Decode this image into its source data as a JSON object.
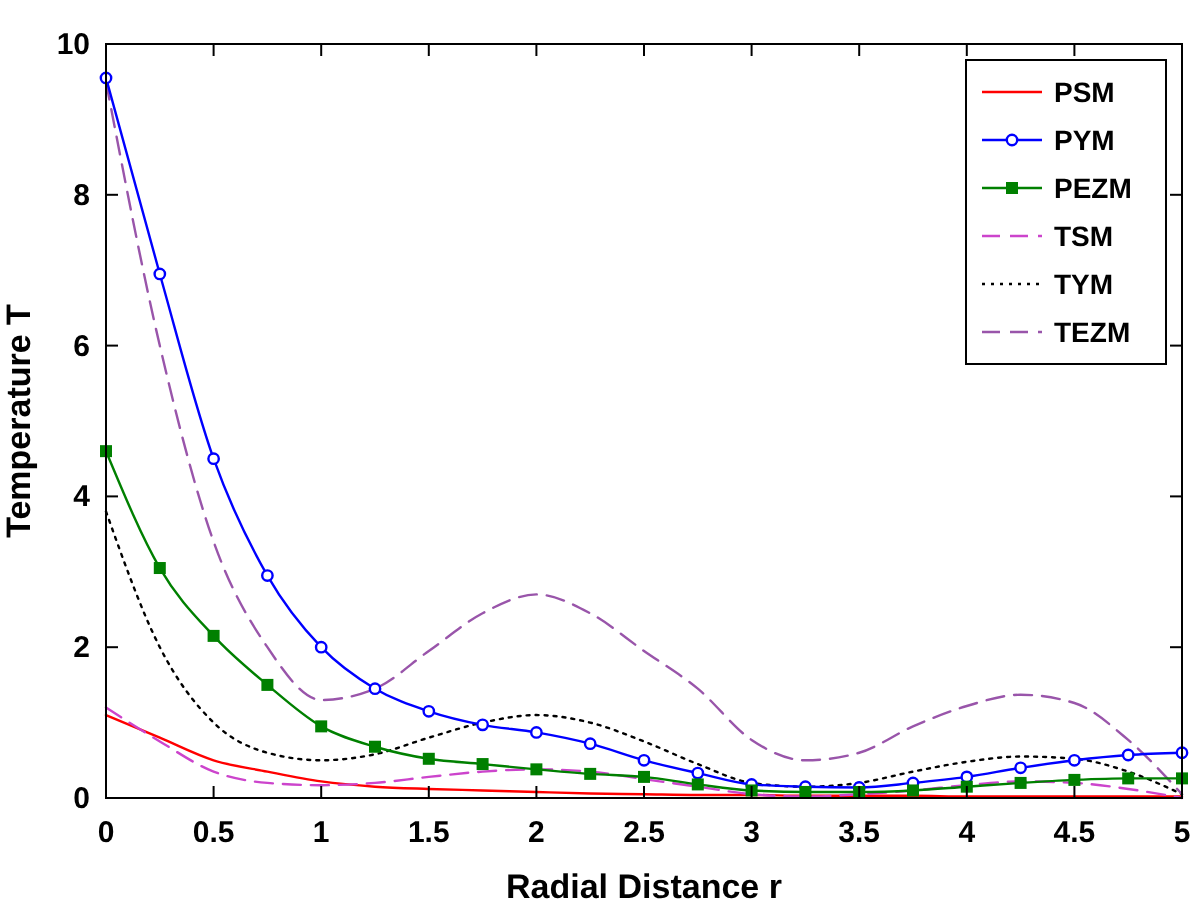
{
  "chart_data": {
    "type": "line",
    "xlabel": "Radial Distance r",
    "ylabel": "Temperature T",
    "x": [
      0,
      0.25,
      0.5,
      0.75,
      1,
      1.25,
      1.5,
      1.75,
      2,
      2.25,
      2.5,
      2.75,
      3,
      3.25,
      3.5,
      3.75,
      4,
      4.25,
      4.5,
      4.75,
      5
    ],
    "xlim": [
      0,
      5
    ],
    "xticks": [
      0,
      0.5,
      1,
      1.5,
      2,
      2.5,
      3,
      3.5,
      4,
      4.5,
      5
    ],
    "ylim": [
      0,
      10
    ],
    "yticks": [
      0,
      2,
      4,
      6,
      8,
      10
    ],
    "legend": "top right",
    "grid": false,
    "series": [
      {
        "name": "PSM",
        "color": "#ff0000",
        "line_style": "solid",
        "marker": "none",
        "values": [
          1.1,
          0.8,
          0.5,
          0.35,
          0.22,
          0.15,
          0.12,
          0.1,
          0.08,
          0.06,
          0.05,
          0.04,
          0.04,
          0.03,
          0.03,
          0.03,
          0.02,
          0.02,
          0.02,
          0.02,
          0.02
        ]
      },
      {
        "name": "PYM",
        "color": "#0000ff",
        "line_style": "solid",
        "marker": "circle",
        "values": [
          9.55,
          6.95,
          4.5,
          2.95,
          2.0,
          1.45,
          1.15,
          0.97,
          0.87,
          0.72,
          0.5,
          0.33,
          0.18,
          0.15,
          0.14,
          0.2,
          0.28,
          0.4,
          0.5,
          0.57,
          0.6
        ]
      },
      {
        "name": "PEZM",
        "color": "#008000",
        "line_style": "solid",
        "marker": "square",
        "values": [
          4.6,
          3.05,
          2.15,
          1.5,
          0.95,
          0.68,
          0.52,
          0.45,
          0.38,
          0.32,
          0.28,
          0.18,
          0.1,
          0.08,
          0.08,
          0.1,
          0.15,
          0.2,
          0.24,
          0.26,
          0.26
        ]
      },
      {
        "name": "TSM",
        "color": "#cc44cc",
        "line_style": "dashed",
        "marker": "none",
        "values": [
          1.2,
          0.75,
          0.35,
          0.2,
          0.17,
          0.2,
          0.28,
          0.35,
          0.38,
          0.35,
          0.25,
          0.15,
          0.05,
          0.02,
          0.05,
          0.1,
          0.17,
          0.22,
          0.2,
          0.12,
          0.0
        ]
      },
      {
        "name": "TYM",
        "color": "#000000",
        "line_style": "dotted",
        "marker": "none",
        "values": [
          3.8,
          2.0,
          1.0,
          0.6,
          0.5,
          0.58,
          0.8,
          1.0,
          1.1,
          1.0,
          0.75,
          0.45,
          0.2,
          0.15,
          0.2,
          0.35,
          0.48,
          0.55,
          0.52,
          0.35,
          0.05
        ]
      },
      {
        "name": "TEZM",
        "color": "#9955aa",
        "line_style": "dashed",
        "marker": "none",
        "values": [
          9.5,
          6.0,
          3.4,
          2.0,
          1.3,
          1.45,
          1.95,
          2.45,
          2.7,
          2.45,
          1.95,
          1.45,
          0.77,
          0.5,
          0.6,
          0.95,
          1.22,
          1.37,
          1.26,
          0.77,
          0.05
        ]
      }
    ]
  }
}
